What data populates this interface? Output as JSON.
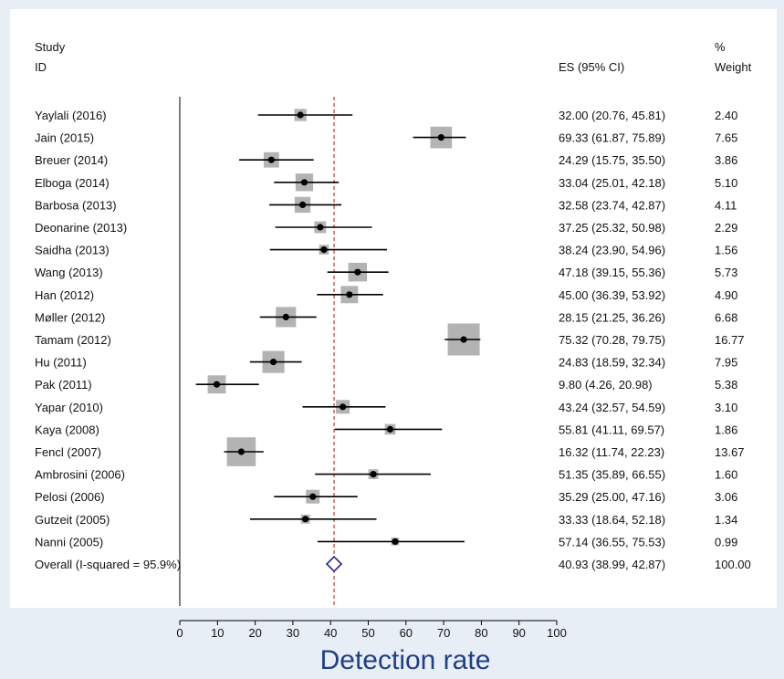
{
  "chart_data": {
    "type": "forest",
    "headers": {
      "study_line1": "Study",
      "study_line2": "ID",
      "es": "ES (95% CI)",
      "weight_line1": "%",
      "weight_line2": "Weight"
    },
    "xlabel": "Detection rate",
    "xlim": [
      0,
      100
    ],
    "xticks": [
      "0",
      "10",
      "20",
      "30",
      "40",
      "50",
      "60",
      "70",
      "80",
      "90",
      "100"
    ],
    "reference_line": 40.93,
    "studies": [
      {
        "label": "Yaylali (2016)",
        "es": 32.0,
        "lo": 20.76,
        "hi": 45.81,
        "es_text": "32.00 (20.76, 45.81)",
        "weight": 2.4,
        "weight_text": "2.40"
      },
      {
        "label": "Jain (2015)",
        "es": 69.33,
        "lo": 61.87,
        "hi": 75.89,
        "es_text": "69.33 (61.87, 75.89)",
        "weight": 7.65,
        "weight_text": "7.65"
      },
      {
        "label": "Breuer (2014)",
        "es": 24.29,
        "lo": 15.75,
        "hi": 35.5,
        "es_text": "24.29 (15.75, 35.50)",
        "weight": 3.86,
        "weight_text": "3.86"
      },
      {
        "label": "Elboga (2014)",
        "es": 33.04,
        "lo": 25.01,
        "hi": 42.18,
        "es_text": "33.04 (25.01, 42.18)",
        "weight": 5.1,
        "weight_text": "5.10"
      },
      {
        "label": "Barbosa (2013)",
        "es": 32.58,
        "lo": 23.74,
        "hi": 42.87,
        "es_text": "32.58 (23.74, 42.87)",
        "weight": 4.11,
        "weight_text": "4.11"
      },
      {
        "label": "Deonarine (2013)",
        "es": 37.25,
        "lo": 25.32,
        "hi": 50.98,
        "es_text": "37.25 (25.32, 50.98)",
        "weight": 2.29,
        "weight_text": "2.29"
      },
      {
        "label": "Saidha (2013)",
        "es": 38.24,
        "lo": 23.9,
        "hi": 54.96,
        "es_text": "38.24 (23.90, 54.96)",
        "weight": 1.56,
        "weight_text": "1.56"
      },
      {
        "label": "Wang (2013)",
        "es": 47.18,
        "lo": 39.15,
        "hi": 55.36,
        "es_text": "47.18 (39.15, 55.36)",
        "weight": 5.73,
        "weight_text": "5.73"
      },
      {
        "label": "Han (2012)",
        "es": 45.0,
        "lo": 36.39,
        "hi": 53.92,
        "es_text": "45.00 (36.39, 53.92)",
        "weight": 4.9,
        "weight_text": "4.90"
      },
      {
        "label": "Møller (2012)",
        "es": 28.15,
        "lo": 21.25,
        "hi": 36.26,
        "es_text": "28.15 (21.25, 36.26)",
        "weight": 6.68,
        "weight_text": "6.68"
      },
      {
        "label": "Tamam (2012)",
        "es": 75.32,
        "lo": 70.28,
        "hi": 79.75,
        "es_text": "75.32 (70.28, 79.75)",
        "weight": 16.77,
        "weight_text": "16.77"
      },
      {
        "label": "Hu (2011)",
        "es": 24.83,
        "lo": 18.59,
        "hi": 32.34,
        "es_text": "24.83 (18.59, 32.34)",
        "weight": 7.95,
        "weight_text": "7.95"
      },
      {
        "label": "Pak (2011)",
        "es": 9.8,
        "lo": 4.26,
        "hi": 20.98,
        "es_text": "9.80 (4.26, 20.98)",
        "weight": 5.38,
        "weight_text": "5.38"
      },
      {
        "label": "Yapar (2010)",
        "es": 43.24,
        "lo": 32.57,
        "hi": 54.59,
        "es_text": "43.24 (32.57, 54.59)",
        "weight": 3.1,
        "weight_text": "3.10"
      },
      {
        "label": "Kaya (2008)",
        "es": 55.81,
        "lo": 41.11,
        "hi": 69.57,
        "es_text": "55.81 (41.11, 69.57)",
        "weight": 1.86,
        "weight_text": "1.86"
      },
      {
        "label": "Fencl (2007)",
        "es": 16.32,
        "lo": 11.74,
        "hi": 22.23,
        "es_text": "16.32 (11.74, 22.23)",
        "weight": 13.67,
        "weight_text": "13.67"
      },
      {
        "label": "Ambrosini (2006)",
        "es": 51.35,
        "lo": 35.89,
        "hi": 66.55,
        "es_text": "51.35 (35.89, 66.55)",
        "weight": 1.6,
        "weight_text": "1.60"
      },
      {
        "label": "Pelosi (2006)",
        "es": 35.29,
        "lo": 25.0,
        "hi": 47.16,
        "es_text": "35.29 (25.00, 47.16)",
        "weight": 3.06,
        "weight_text": "3.06"
      },
      {
        "label": "Gutzeit (2005)",
        "es": 33.33,
        "lo": 18.64,
        "hi": 52.18,
        "es_text": "33.33 (18.64, 52.18)",
        "weight": 1.34,
        "weight_text": "1.34"
      },
      {
        "label": "Nanni (2005)",
        "es": 57.14,
        "lo": 36.55,
        "hi": 75.53,
        "es_text": "57.14 (36.55, 75.53)",
        "weight": 0.99,
        "weight_text": "0.99"
      }
    ],
    "overall": {
      "label": "Overall  (I-squared = 95.9%)",
      "es": 40.93,
      "lo": 38.99,
      "hi": 42.87,
      "es_text": "40.93 (38.99, 42.87)",
      "weight": 100.0,
      "weight_text": "100.00"
    },
    "colors": {
      "box": "#b3b3b3",
      "ci_line": "#000000",
      "point": "#000000",
      "reference_line": "#c0392b",
      "diamond": "#2a2a8a",
      "xlabel": "#1f3f86",
      "background": "#e8eef5",
      "panel": "#ffffff"
    }
  }
}
